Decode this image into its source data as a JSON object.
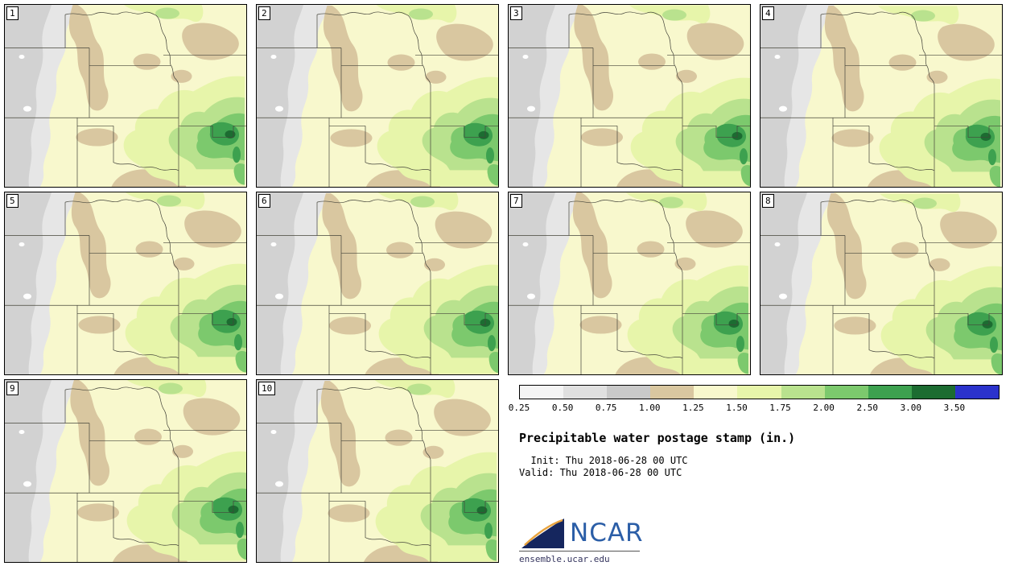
{
  "panels": [
    {
      "label": "1"
    },
    {
      "label": "2"
    },
    {
      "label": "3"
    },
    {
      "label": "4"
    },
    {
      "label": "5"
    },
    {
      "label": "6"
    },
    {
      "label": "7"
    },
    {
      "label": "8"
    },
    {
      "label": "9"
    },
    {
      "label": "10"
    }
  ],
  "colorbar": {
    "ticks": [
      "0.25",
      "0.50",
      "0.75",
      "1.00",
      "1.25",
      "1.50",
      "1.75",
      "2.00",
      "2.50",
      "3.00",
      "3.50"
    ],
    "colors": [
      "#f4f4f4",
      "#e0e0e0",
      "#c9c9c9",
      "#d9c7a0",
      "#f8f8cd",
      "#e7f5aa",
      "#b9e28e",
      "#7cc96d",
      "#3da14f",
      "#1c6c31",
      "#2b32cc"
    ]
  },
  "legend": {
    "title": "Precipitable water postage stamp (in.)",
    "init_line": "  Init: Thu 2018-06-28 00 UTC",
    "valid_line": "Valid: Thu 2018-06-28 00 UTC"
  },
  "branding": {
    "logo_text": "NCAR",
    "site_url": "ensemble.ucar.edu"
  },
  "map_colors": {
    "background_pale_yellow": "#f8f8cd",
    "light_gray": "#e6e6e6",
    "medium_gray": "#d2d2d2",
    "tan": "#d9c7a0",
    "yellow_green": "#e7f5aa",
    "light_green": "#b9e28e",
    "medium_green": "#7cc96d",
    "green": "#3da14f",
    "dark_green": "#1c6c31",
    "state_border": "#44443a"
  }
}
